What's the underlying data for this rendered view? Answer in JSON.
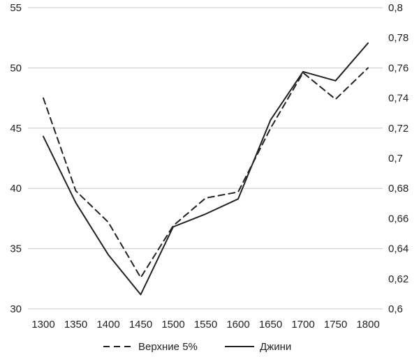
{
  "chart_data": {
    "type": "line",
    "x": [
      1300,
      1350,
      1400,
      1450,
      1500,
      1550,
      1600,
      1650,
      1700,
      1750,
      1800
    ],
    "series": [
      {
        "name": "Верхние 5%",
        "axis": "left",
        "style": "dashed",
        "color": "#222222",
        "values": [
          47.5,
          39.8,
          37.2,
          32.6,
          36.9,
          39.2,
          39.7,
          45.0,
          49.6,
          47.4,
          50.0
        ]
      },
      {
        "name": "Джини",
        "axis": "right",
        "style": "solid",
        "color": "#222222",
        "values": [
          0.7145,
          0.6705,
          0.636,
          0.6095,
          0.6545,
          0.663,
          0.673,
          0.7255,
          0.7575,
          0.7515,
          0.7765
        ]
      }
    ],
    "left_axis": {
      "ylim": [
        30,
        55
      ],
      "ticks": [
        30,
        35,
        40,
        45,
        50,
        55
      ],
      "tick_labels": [
        "30",
        "35",
        "40",
        "45",
        "50",
        "55"
      ]
    },
    "right_axis": {
      "ylim": [
        0.6,
        0.8
      ],
      "ticks": [
        0.6,
        0.62,
        0.64,
        0.66,
        0.68,
        0.7,
        0.72,
        0.74,
        0.76,
        0.78,
        0.8
      ],
      "tick_labels": [
        "0,6",
        "0,62",
        "0,64",
        "0,66",
        "0,68",
        "0,7",
        "0,72",
        "0,74",
        "0,76",
        "0,78",
        "0,8"
      ]
    },
    "x_tick_labels": [
      "1300",
      "1350",
      "1400",
      "1450",
      "1500",
      "1550",
      "1600",
      "1650",
      "1700",
      "1750",
      "1800"
    ],
    "grid": true,
    "legend_position": "bottom-center",
    "title": "",
    "xlabel": "",
    "ylabel": ""
  }
}
